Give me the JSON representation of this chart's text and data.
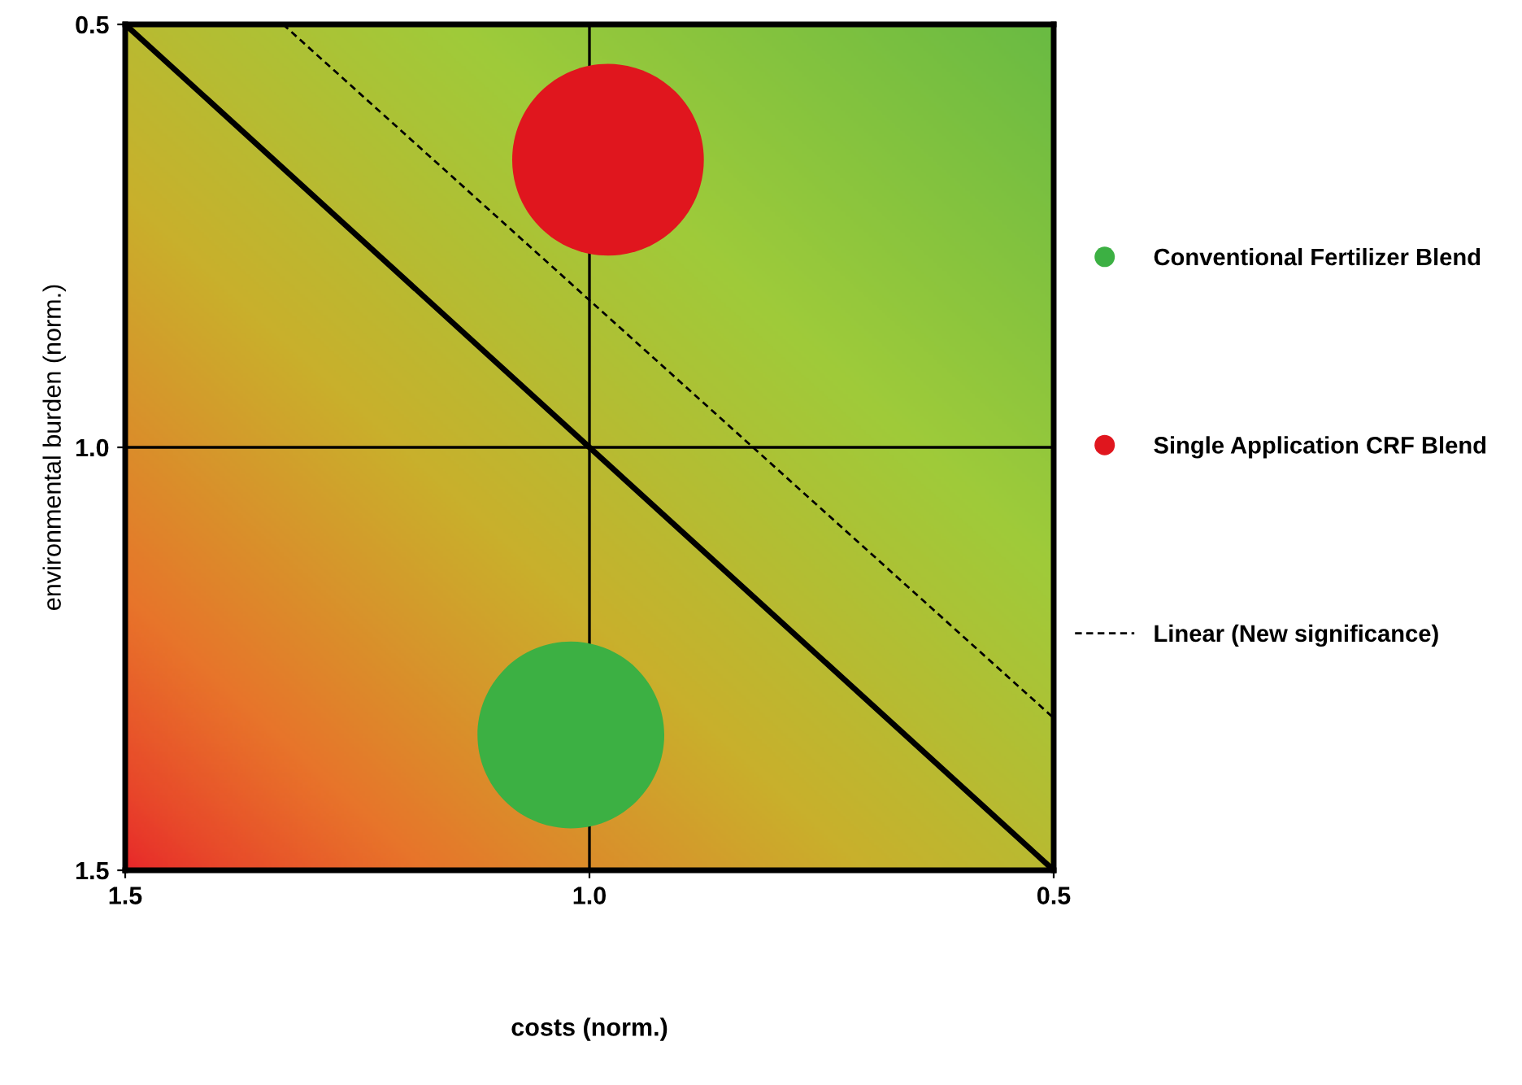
{
  "chart_data": {
    "type": "bubble",
    "xlabel": "costs (norm.)",
    "ylabel": "environmental burden (norm.)",
    "xlim": [
      1.5,
      0.5
    ],
    "ylim": [
      1.5,
      0.5
    ],
    "xticks": [
      {
        "value": 1.5,
        "label": "1.5"
      },
      {
        "value": 1.0,
        "label": "1.0"
      },
      {
        "value": 0.5,
        "label": "0.5"
      }
    ],
    "yticks": [
      {
        "value": 1.5,
        "label": "1.5"
      },
      {
        "value": 1.0,
        "label": "1.0"
      },
      {
        "value": 0.5,
        "label": "0.5"
      }
    ],
    "series": [
      {
        "name": "Conventional Fertilizer Blend",
        "color": "#3cb043",
        "x": [
          1.02
        ],
        "values": [
          1.34
        ],
        "sizes": [
          0.95
        ]
      },
      {
        "name": "Single Application CRF Blend",
        "color": "#e0161e",
        "x": [
          0.98
        ],
        "values": [
          0.66
        ],
        "sizes": [
          1
        ]
      },
      {
        "name": "Linear (New significance)",
        "type": "line",
        "line_style": "dashed",
        "color": "#000000",
        "x": [
          1.33,
          0.5
        ],
        "values": [
          0.5,
          1.32
        ]
      },
      {
        "type": "line",
        "line_style": "solid",
        "color": "#000000",
        "x": [
          1.5,
          0.5
        ],
        "values": [
          0.5,
          1.5
        ]
      }
    ],
    "grid": true,
    "legend": "right"
  }
}
